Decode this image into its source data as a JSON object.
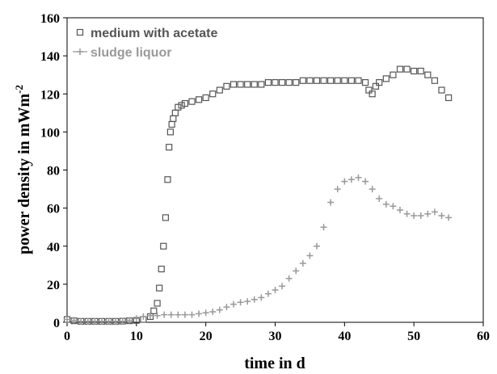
{
  "chart_data": {
    "type": "scatter",
    "x_label": "time in d",
    "y_label": "power density in mWm",
    "y_label_superscript": "-2",
    "xlim": [
      0,
      60
    ],
    "xticks": [
      0,
      10,
      20,
      30,
      40,
      50,
      60
    ],
    "ylim": [
      0,
      160
    ],
    "yticks": [
      0,
      20,
      40,
      60,
      80,
      100,
      120,
      140,
      160
    ],
    "legend": "upper left",
    "series": [
      {
        "name": "medium with acetate",
        "color": "#555555",
        "marker": "square",
        "x": [
          0,
          1,
          2,
          3,
          4,
          5,
          6,
          7,
          8,
          9,
          10,
          11,
          12,
          12.5,
          13,
          13.3,
          13.6,
          13.9,
          14.2,
          14.5,
          14.7,
          14.9,
          15.1,
          15.3,
          15.6,
          16,
          16.5,
          17,
          18,
          19,
          20,
          21,
          22,
          23,
          24,
          25,
          26,
          27,
          28,
          29,
          30,
          31,
          32,
          33,
          34,
          35,
          36,
          37,
          38,
          39,
          40,
          41,
          42,
          43,
          43.5,
          44,
          44.5,
          45,
          46,
          47,
          48,
          49,
          50,
          51,
          52,
          53,
          54,
          55
        ],
        "values": [
          1.5,
          0.8,
          0.5,
          0.5,
          0.5,
          0.5,
          0.5,
          0.5,
          0.6,
          0.8,
          1,
          1.5,
          3,
          6,
          10,
          18,
          28,
          40,
          55,
          75,
          92,
          100,
          104,
          107,
          110,
          113,
          114,
          115,
          116,
          117,
          118,
          120,
          122,
          124,
          125,
          125,
          125,
          125,
          125,
          126,
          126,
          126,
          126,
          126,
          127,
          127,
          127,
          127,
          127,
          127,
          127,
          127,
          127,
          126,
          122,
          120,
          124,
          126,
          128,
          130,
          133,
          133,
          132,
          132,
          130,
          127,
          122,
          118
        ]
      },
      {
        "name": "sludge liquor",
        "color": "#999999",
        "marker": "plus",
        "x": [
          0,
          1,
          2,
          3,
          4,
          5,
          6,
          7,
          8,
          9,
          10,
          11,
          12,
          13,
          14,
          15,
          16,
          17,
          18,
          19,
          20,
          21,
          22,
          23,
          24,
          25,
          26,
          27,
          28,
          29,
          30,
          31,
          32,
          33,
          34,
          35,
          36,
          37,
          38,
          39,
          40,
          41,
          42,
          43,
          44,
          45,
          46,
          47,
          48,
          49,
          50,
          51,
          52,
          53,
          54,
          55
        ],
        "values": [
          1.5,
          1,
          0.5,
          0.5,
          0.5,
          0.5,
          0.5,
          0.5,
          0.5,
          1,
          2,
          3,
          3.5,
          3.5,
          4,
          4,
          4,
          4,
          4,
          4.5,
          5,
          5.5,
          6.5,
          8,
          9.5,
          10.5,
          11,
          12,
          13,
          15,
          17,
          19,
          23,
          27,
          31,
          35,
          40,
          50,
          63,
          70,
          74,
          75,
          76,
          74,
          70,
          65,
          62,
          61,
          59,
          57,
          56,
          56,
          57,
          58,
          56,
          55
        ]
      }
    ]
  }
}
